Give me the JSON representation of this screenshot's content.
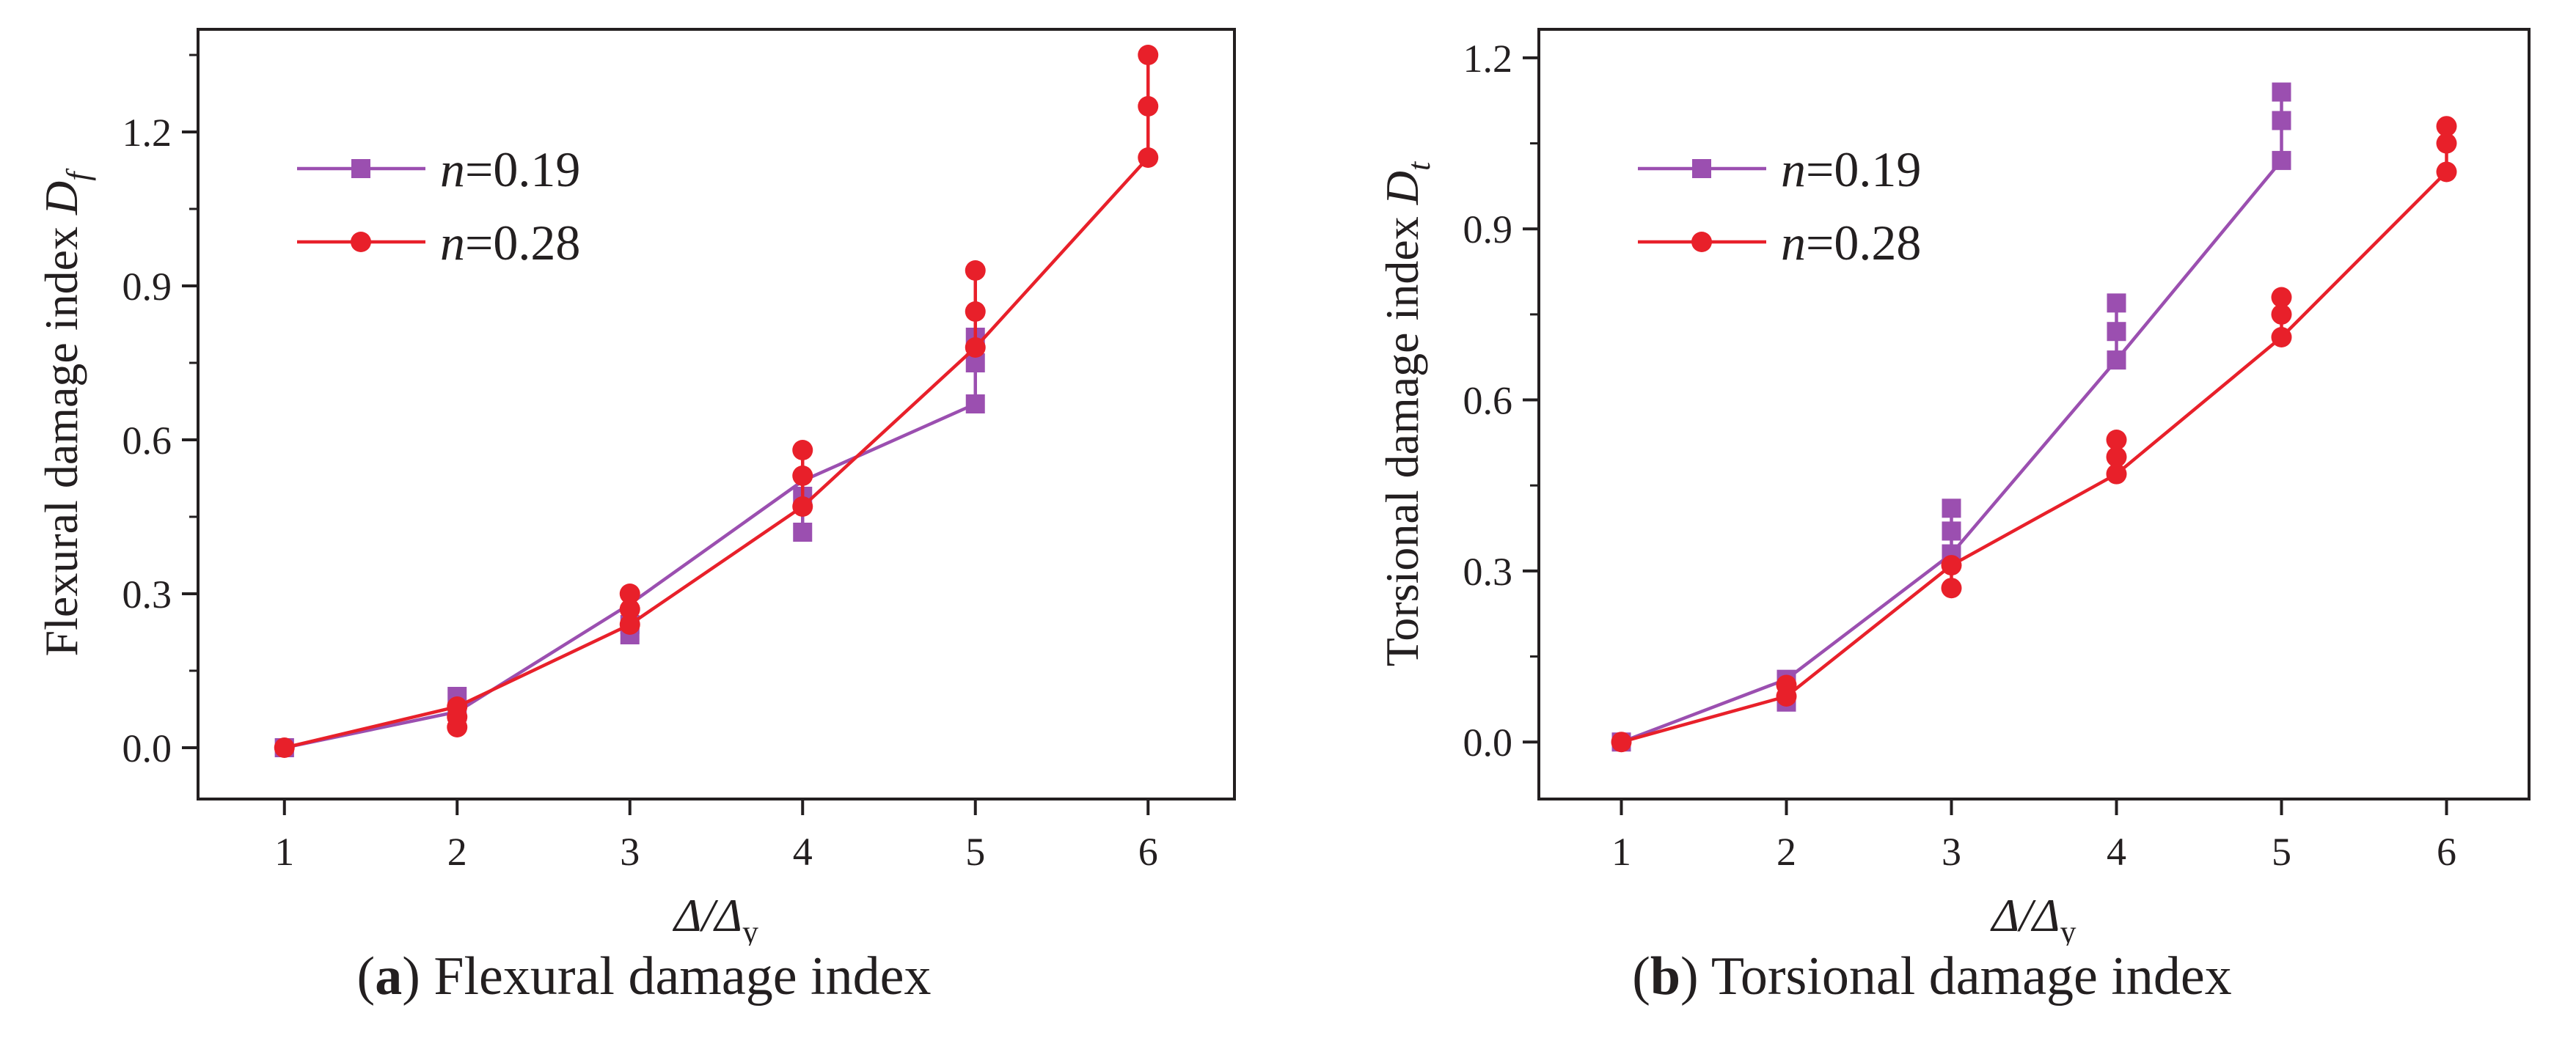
{
  "panels": [
    {
      "id": "a",
      "caption_letter": "a",
      "caption_text": "Flexural damage index",
      "ylabel_main": "Flexural damage index ",
      "ylabel_symbol": "D",
      "ylabel_sub": "f",
      "xlabel_main": "Δ/Δ",
      "xlabel_sub": "y",
      "legend": [
        {
          "prefix": "n",
          "value": "=0.19"
        },
        {
          "prefix": "n",
          "value": "=0.28"
        }
      ]
    },
    {
      "id": "b",
      "caption_letter": "b",
      "caption_text": "Torsional damage index",
      "ylabel_main": "Torsional damage index ",
      "ylabel_symbol": "D",
      "ylabel_sub": "t",
      "xlabel_main": "Δ/Δ",
      "xlabel_sub": "y",
      "legend": [
        {
          "prefix": "n",
          "value": "=0.19"
        },
        {
          "prefix": "n",
          "value": "=0.28"
        }
      ]
    }
  ],
  "chart_data": [
    {
      "type": "line",
      "title": "",
      "xlabel": "Δ/Δy",
      "ylabel": "Flexural damage index Df",
      "xlim": [
        0.5,
        6.5
      ],
      "ylim": [
        -0.1,
        1.4
      ],
      "xticks": [
        1,
        2,
        3,
        4,
        5,
        6
      ],
      "yticks": [
        0.0,
        0.3,
        0.6,
        0.9,
        1.2
      ],
      "ytick_labels": [
        "0.0",
        "0.3",
        "0.6",
        "0.9",
        "1.2"
      ],
      "legend_position": "upper-left",
      "series": [
        {
          "name": "n=0.19",
          "color": "#9b4fb0",
          "marker": "square",
          "points": [
            {
              "x": 1,
              "y": [
                0.0,
                0.0
              ]
            },
            {
              "x": 2,
              "y": [
                0.07,
                0.1
              ]
            },
            {
              "x": 3,
              "y": [
                0.22,
                0.24
              ]
            },
            {
              "x": 4,
              "y": [
                0.42,
                0.49
              ]
            },
            {
              "x": 5,
              "y": [
                0.67,
                0.75,
                0.8
              ]
            }
          ],
          "line": [
            [
              1,
              0.0
            ],
            [
              2,
              0.07
            ],
            [
              3,
              0.28
            ],
            [
              4,
              0.52
            ],
            [
              5,
              0.67
            ]
          ]
        },
        {
          "name": "n=0.28",
          "color": "#e8202a",
          "marker": "circle",
          "points": [
            {
              "x": 1,
              "y": [
                0.0
              ]
            },
            {
              "x": 2,
              "y": [
                0.04,
                0.06,
                0.08
              ]
            },
            {
              "x": 3,
              "y": [
                0.24,
                0.27,
                0.3
              ]
            },
            {
              "x": 4,
              "y": [
                0.47,
                0.53,
                0.58
              ]
            },
            {
              "x": 5,
              "y": [
                0.78,
                0.85,
                0.93
              ]
            },
            {
              "x": 6,
              "y": [
                1.15,
                1.25,
                1.35
              ]
            }
          ],
          "line": [
            [
              1,
              0.0
            ],
            [
              2,
              0.08
            ],
            [
              3,
              0.24
            ],
            [
              4,
              0.47
            ],
            [
              5,
              0.78
            ],
            [
              6,
              1.15
            ]
          ]
        }
      ]
    },
    {
      "type": "line",
      "title": "",
      "xlabel": "Δ/Δy",
      "ylabel": "Torsional damage index Dt",
      "xlim": [
        0.5,
        6.5
      ],
      "ylim": [
        -0.1,
        1.25
      ],
      "xticks": [
        1,
        2,
        3,
        4,
        5,
        6
      ],
      "yticks": [
        0.0,
        0.3,
        0.6,
        0.9,
        1.2
      ],
      "ytick_labels": [
        "0.0",
        "0.3",
        "0.6",
        "0.9",
        "1.2"
      ],
      "legend_position": "upper-left",
      "series": [
        {
          "name": "n=0.19",
          "color": "#9b4fb0",
          "marker": "square",
          "points": [
            {
              "x": 1,
              "y": [
                0.0
              ]
            },
            {
              "x": 2,
              "y": [
                0.07,
                0.11
              ]
            },
            {
              "x": 3,
              "y": [
                0.33,
                0.37,
                0.41
              ]
            },
            {
              "x": 4,
              "y": [
                0.67,
                0.72,
                0.77
              ]
            },
            {
              "x": 5,
              "y": [
                1.02,
                1.09,
                1.14
              ]
            }
          ],
          "line": [
            [
              1,
              0.0
            ],
            [
              2,
              0.11
            ],
            [
              3,
              0.33
            ],
            [
              4,
              0.67
            ],
            [
              5,
              1.02
            ]
          ]
        },
        {
          "name": "n=0.28",
          "color": "#e8202a",
          "marker": "circle",
          "points": [
            {
              "x": 1,
              "y": [
                0.0
              ]
            },
            {
              "x": 2,
              "y": [
                0.08,
                0.1
              ]
            },
            {
              "x": 3,
              "y": [
                0.27,
                0.31
              ]
            },
            {
              "x": 4,
              "y": [
                0.47,
                0.5,
                0.53
              ]
            },
            {
              "x": 5,
              "y": [
                0.71,
                0.75,
                0.78
              ]
            },
            {
              "x": 6,
              "y": [
                1.0,
                1.05,
                1.08
              ]
            }
          ],
          "line": [
            [
              1,
              0.0
            ],
            [
              2,
              0.08
            ],
            [
              3,
              0.31
            ],
            [
              4,
              0.47
            ],
            [
              5,
              0.71
            ],
            [
              6,
              1.0
            ]
          ]
        }
      ]
    }
  ]
}
